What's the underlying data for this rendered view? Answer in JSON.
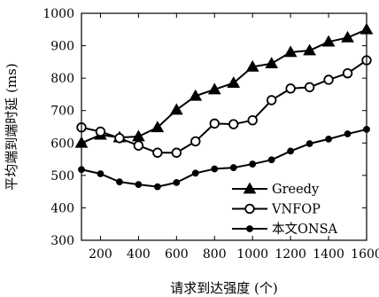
{
  "chart_data": {
    "type": "line",
    "title": "",
    "xlabel": "请求到达强度 (个)",
    "ylabel": "平均端到端时延 (ms)",
    "xlim": [
      100,
      1600
    ],
    "ylim": [
      300,
      1000
    ],
    "xticks": [
      200,
      400,
      600,
      800,
      1000,
      1200,
      1400,
      1600
    ],
    "yticks": [
      300,
      400,
      500,
      600,
      700,
      800,
      900,
      1000
    ],
    "x": [
      100,
      200,
      300,
      400,
      500,
      600,
      700,
      800,
      900,
      1000,
      1100,
      1200,
      1300,
      1400,
      1500,
      1600
    ],
    "legend_position": "bottom-right",
    "grid": false,
    "series": [
      {
        "name": "Greedy",
        "marker": "triangle",
        "values": [
          600,
          625,
          617,
          620,
          648,
          702,
          745,
          765,
          785,
          835,
          845,
          880,
          885,
          912,
          925,
          950
        ]
      },
      {
        "name": "VNFOP",
        "marker": "circle-open",
        "values": [
          648,
          635,
          615,
          592,
          570,
          570,
          605,
          660,
          658,
          670,
          732,
          768,
          772,
          795,
          815,
          855
        ]
      },
      {
        "name": "本文ONSA",
        "marker": "circle-filled",
        "values": [
          518,
          505,
          480,
          472,
          465,
          478,
          507,
          520,
          524,
          535,
          548,
          575,
          598,
          612,
          628,
          642
        ]
      }
    ]
  }
}
